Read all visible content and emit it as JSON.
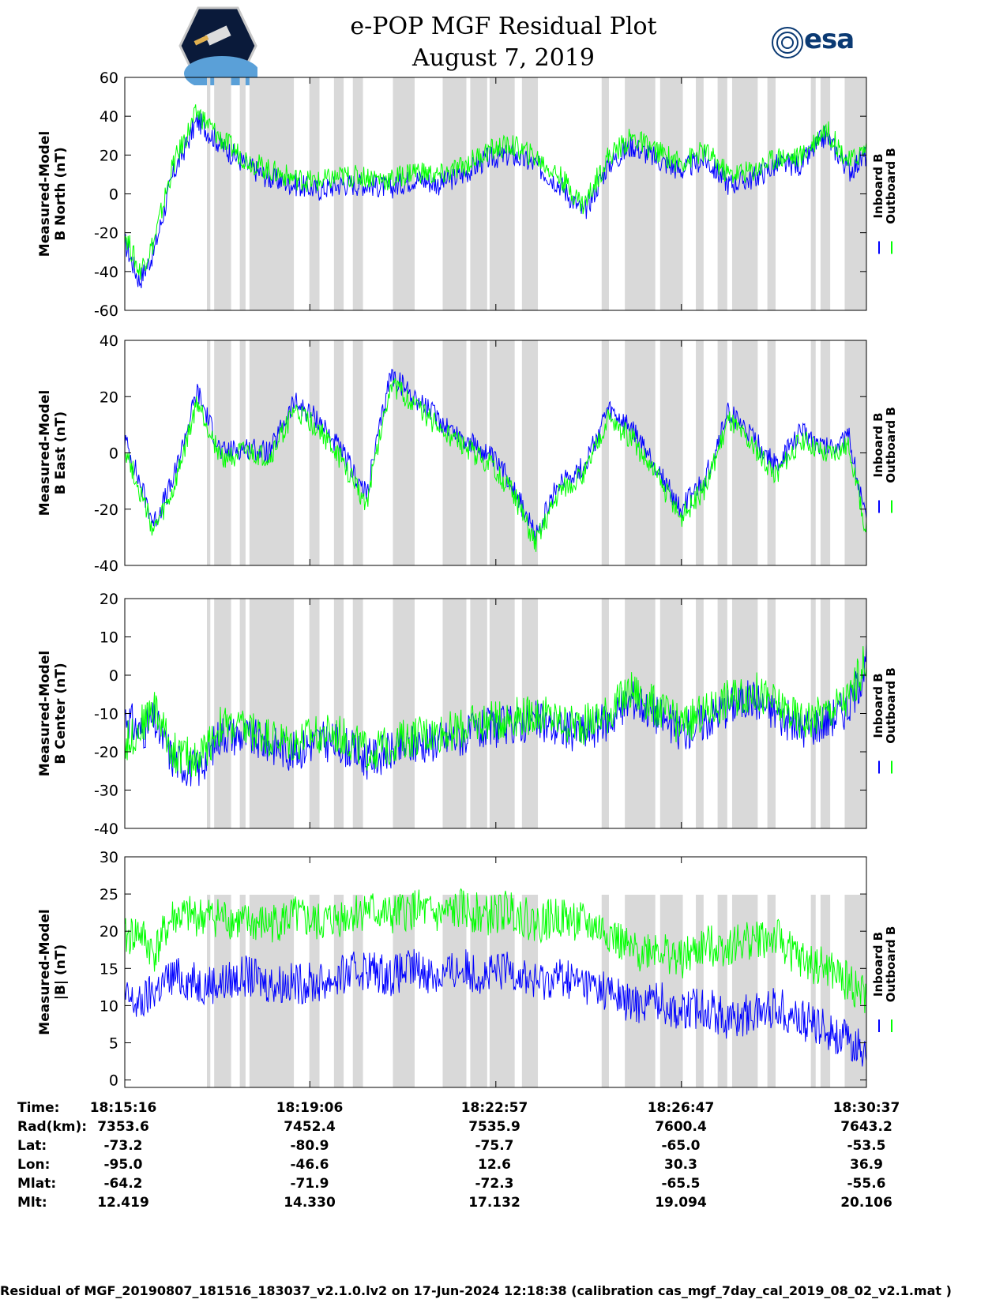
{
  "title": "e-POP MGF Residual Plot",
  "subtitle": "August 7, 2019",
  "logos": {
    "left": "cassiope-mission-logo",
    "right_text": "esa"
  },
  "colors": {
    "inboard": "#0000ff",
    "outboard": "#00ff00",
    "gap": "#d9d9d9"
  },
  "chart_data": [
    {
      "type": "line",
      "ylabel": [
        "Measured-Model",
        "B North (nT)"
      ],
      "ylim": [
        -60,
        60
      ],
      "yticks": [
        "60",
        "40",
        "20",
        "0",
        "-20",
        "-40",
        "-60"
      ],
      "legend": [
        "Inboard B",
        "Outboard B"
      ],
      "series": [
        {
          "name": "Inboard B",
          "color": "#0000ff",
          "x": [
            0,
            0.3,
            0.6,
            1.0,
            1.5,
            2.0,
            2.5,
            3.0,
            3.5,
            4.0,
            4.5,
            5.0,
            5.5,
            6.0,
            6.5,
            7.0,
            7.5,
            8.0,
            8.5,
            9.0,
            9.5,
            10.0,
            10.5,
            11.0,
            11.5,
            12.0,
            12.5,
            13.0,
            13.5,
            14.0,
            14.5,
            15.0,
            15.35
          ],
          "values": [
            -25,
            -45,
            -30,
            10,
            38,
            25,
            15,
            8,
            5,
            2,
            5,
            5,
            3,
            8,
            5,
            10,
            18,
            20,
            15,
            5,
            -10,
            15,
            25,
            18,
            12,
            18,
            5,
            8,
            15,
            15,
            30,
            12,
            20
          ]
        },
        {
          "name": "Outboard B",
          "color": "#00ff00",
          "x": [
            0,
            0.3,
            0.6,
            1.0,
            1.5,
            2.0,
            2.5,
            3.0,
            3.5,
            4.0,
            4.5,
            5.0,
            5.5,
            6.0,
            6.5,
            7.0,
            7.5,
            8.0,
            8.5,
            9.0,
            9.5,
            10.0,
            10.5,
            11.0,
            11.5,
            12.0,
            12.5,
            13.0,
            13.5,
            14.0,
            14.5,
            15.0,
            15.35
          ],
          "values": [
            -20,
            -40,
            -25,
            15,
            42,
            28,
            18,
            12,
            8,
            6,
            9,
            9,
            7,
            12,
            9,
            14,
            22,
            25,
            19,
            9,
            -6,
            19,
            29,
            22,
            16,
            22,
            10,
            12,
            19,
            19,
            34,
            16,
            24
          ]
        }
      ]
    },
    {
      "type": "line",
      "ylabel": [
        "Measured-Model",
        "B East (nT)"
      ],
      "ylim": [
        -40,
        40
      ],
      "yticks": [
        "40",
        "20",
        "0",
        "-20",
        "-40"
      ],
      "legend": [
        "Inboard B",
        "Outboard B"
      ],
      "series": [
        {
          "name": "Inboard B",
          "color": "#0000ff",
          "x": [
            0,
            0.3,
            0.6,
            1.0,
            1.5,
            2.0,
            2.5,
            3.0,
            3.5,
            4.0,
            4.5,
            5.0,
            5.5,
            6.0,
            6.5,
            7.0,
            7.5,
            8.0,
            8.5,
            9.0,
            9.5,
            10.0,
            10.5,
            11.0,
            11.5,
            12.0,
            12.5,
            13.0,
            13.5,
            14.0,
            14.5,
            15.0,
            15.35
          ],
          "values": [
            5,
            -10,
            -25,
            -10,
            22,
            0,
            2,
            0,
            18,
            12,
            0,
            -15,
            28,
            20,
            12,
            5,
            0,
            -10,
            -30,
            -10,
            -5,
            15,
            8,
            -5,
            -20,
            -10,
            15,
            5,
            -5,
            8,
            2,
            5,
            -25
          ]
        },
        {
          "name": "Outboard B",
          "color": "#00ff00",
          "x": [
            0,
            0.3,
            0.6,
            1.0,
            1.5,
            2.0,
            2.5,
            3.0,
            3.5,
            4.0,
            4.5,
            5.0,
            5.5,
            6.0,
            6.5,
            7.0,
            7.5,
            8.0,
            8.5,
            9.0,
            9.5,
            10.0,
            10.5,
            11.0,
            11.5,
            12.0,
            12.5,
            13.0,
            13.5,
            14.0,
            14.5,
            15.0,
            15.35
          ],
          "values": [
            2,
            -13,
            -28,
            -14,
            18,
            -2,
            0,
            -2,
            15,
            9,
            -3,
            -18,
            25,
            17,
            9,
            2,
            -3,
            -13,
            -32,
            -13,
            -8,
            12,
            5,
            -8,
            -23,
            -13,
            12,
            2,
            -8,
            5,
            -1,
            2,
            -28
          ]
        }
      ]
    },
    {
      "type": "line",
      "ylabel": [
        "Measured-Model",
        "B Center (nT)"
      ],
      "ylim": [
        -40,
        20
      ],
      "yticks": [
        "20",
        "10",
        "0",
        "-10",
        "-20",
        "-30",
        "-40"
      ],
      "legend": [
        "Inboard B",
        "Outboard B"
      ],
      "series": [
        {
          "name": "Inboard B",
          "color": "#0000ff",
          "x": [
            0,
            0.3,
            0.6,
            1.0,
            1.5,
            2.0,
            2.5,
            3.0,
            3.5,
            4.0,
            4.5,
            5.0,
            5.5,
            6.0,
            6.5,
            7.0,
            7.5,
            8.0,
            8.5,
            9.0,
            9.5,
            10.0,
            10.5,
            11.0,
            11.5,
            12.0,
            12.5,
            13.0,
            13.5,
            14.0,
            14.5,
            15.0,
            15.35
          ],
          "values": [
            -10,
            -15,
            -12,
            -22,
            -25,
            -15,
            -16,
            -18,
            -20,
            -17,
            -18,
            -22,
            -20,
            -18,
            -17,
            -16,
            -14,
            -13,
            -12,
            -14,
            -15,
            -12,
            -6,
            -10,
            -15,
            -12,
            -8,
            -6,
            -10,
            -14,
            -12,
            -8,
            3
          ]
        },
        {
          "name": "Outboard B",
          "color": "#00ff00",
          "x": [
            0,
            0.3,
            0.6,
            1.0,
            1.5,
            2.0,
            2.5,
            3.0,
            3.5,
            4.0,
            4.5,
            5.0,
            5.5,
            6.0,
            6.5,
            7.0,
            7.5,
            8.0,
            8.5,
            9.0,
            9.5,
            10.0,
            10.5,
            11.0,
            11.5,
            12.0,
            12.5,
            13.0,
            13.5,
            14.0,
            14.5,
            15.0,
            15.35
          ],
          "values": [
            -18,
            -14,
            -8,
            -20,
            -22,
            -13,
            -14,
            -16,
            -18,
            -15,
            -16,
            -20,
            -18,
            -16,
            -15,
            -14,
            -12,
            -11,
            -10,
            -12,
            -13,
            -10,
            -4,
            -8,
            -13,
            -10,
            -6,
            -4,
            -8,
            -12,
            -10,
            -6,
            5
          ]
        }
      ]
    },
    {
      "type": "line",
      "ylabel": [
        "Measured-Model",
        "|B| (nT)"
      ],
      "ylim": [
        -1,
        30
      ],
      "yticks": [
        "30",
        "25",
        "20",
        "15",
        "10",
        "5",
        "0"
      ],
      "legend": [
        "Inboard B",
        "Outboard B"
      ],
      "series": [
        {
          "name": "Inboard B",
          "color": "#0000ff",
          "x": [
            0,
            0.3,
            0.6,
            1.0,
            1.5,
            2.0,
            2.5,
            3.0,
            3.5,
            4.0,
            4.5,
            5.0,
            5.5,
            6.0,
            6.5,
            7.0,
            7.5,
            8.0,
            8.5,
            9.0,
            9.5,
            10.0,
            10.5,
            11.0,
            11.5,
            12.0,
            12.5,
            13.0,
            13.5,
            14.0,
            14.5,
            15.0,
            15.35
          ],
          "values": [
            11,
            10,
            12,
            14,
            13,
            13,
            14,
            13,
            13,
            13,
            14,
            15,
            14,
            15,
            14,
            15,
            14,
            15,
            13,
            14,
            13,
            12,
            10,
            11,
            9,
            10,
            8,
            9,
            10,
            8,
            7,
            5,
            4
          ]
        },
        {
          "name": "Outboard B",
          "color": "#00ff00",
          "x": [
            0,
            0.3,
            0.6,
            1.0,
            1.5,
            2.0,
            2.5,
            3.0,
            3.5,
            4.0,
            4.5,
            5.0,
            5.5,
            6.0,
            6.5,
            7.0,
            7.5,
            8.0,
            8.5,
            9.0,
            9.5,
            10.0,
            10.5,
            11.0,
            11.5,
            12.0,
            12.5,
            13.0,
            13.5,
            14.0,
            14.5,
            15.0,
            15.35
          ],
          "values": [
            19,
            20,
            17,
            22,
            22,
            22,
            21,
            21,
            22,
            21,
            22,
            23,
            22,
            23,
            22,
            23,
            22,
            23,
            21,
            22,
            21,
            20,
            17,
            18,
            16,
            18,
            18,
            19,
            19,
            16,
            15,
            13,
            11
          ]
        }
      ]
    }
  ],
  "gap_intervals_min": [
    [
      1.7,
      1.77
    ],
    [
      1.85,
      2.2
    ],
    [
      2.38,
      2.5
    ],
    [
      2.58,
      3.5
    ],
    [
      3.82,
      4.03
    ],
    [
      4.33,
      4.53
    ],
    [
      4.72,
      4.93
    ],
    [
      5.55,
      6.0
    ],
    [
      6.58,
      7.07
    ],
    [
      7.15,
      7.5
    ],
    [
      7.55,
      8.07
    ],
    [
      8.22,
      8.55
    ],
    [
      9.87,
      10.02
    ],
    [
      10.35,
      10.98
    ],
    [
      11.08,
      11.55
    ],
    [
      11.82,
      11.98
    ],
    [
      12.27,
      12.47
    ],
    [
      12.57,
      13.1
    ],
    [
      13.3,
      13.47
    ],
    [
      14.2,
      14.3
    ],
    [
      14.4,
      14.6
    ],
    [
      14.9,
      15.35
    ]
  ],
  "table": {
    "labels": [
      "Time:",
      "Rad(km):",
      "Lat:",
      "Lon:",
      "Mlat:",
      "Mlt:"
    ],
    "columns": [
      [
        "18:15:16",
        "7353.6",
        "-73.2",
        "-95.0",
        "-64.2",
        "12.419"
      ],
      [
        "18:19:06",
        "7452.4",
        "-80.9",
        "-46.6",
        "-71.9",
        "14.330"
      ],
      [
        "18:22:57",
        "7535.9",
        "-75.7",
        "12.6",
        "-72.3",
        "17.132"
      ],
      [
        "18:26:47",
        "7600.4",
        "-65.0",
        "30.3",
        "-65.5",
        "19.094"
      ],
      [
        "18:30:37",
        "7643.2",
        "-53.5",
        "36.9",
        "-55.6",
        "20.106"
      ]
    ]
  },
  "footer": "Residual of MGF_20190807_181516_183037_v2.1.0.lv2 on 17-Jun-2024 12:18:38 (calibration cas_mgf_7day_cal_2019_08_02_v2.1.mat )"
}
